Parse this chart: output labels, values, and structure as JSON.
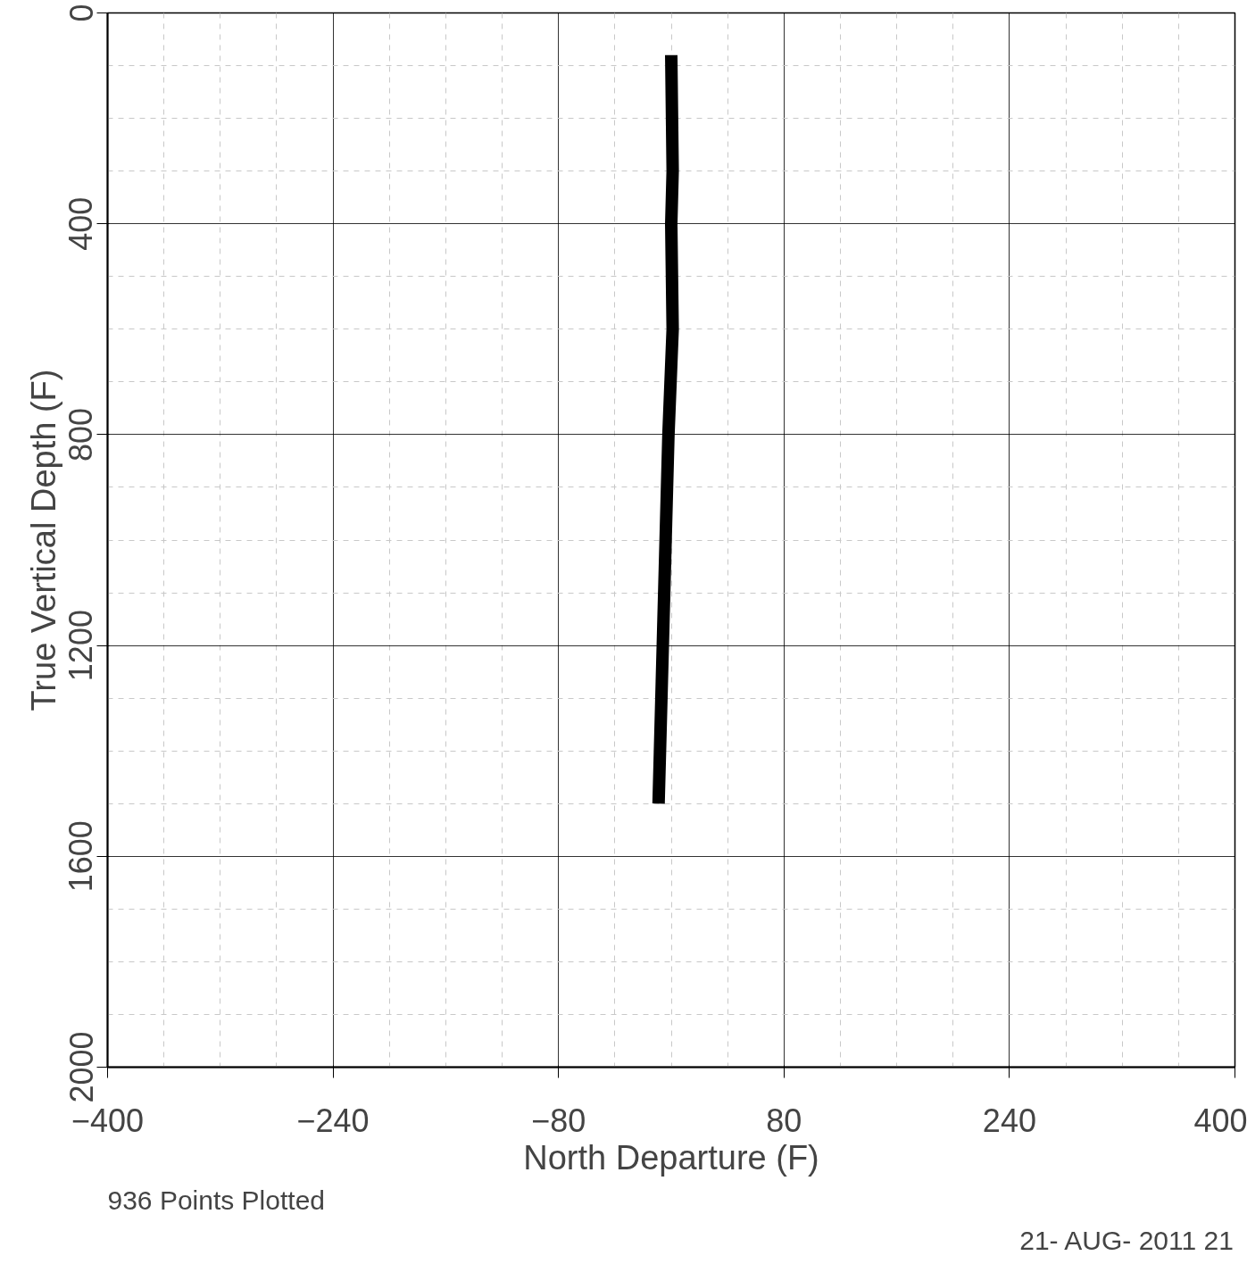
{
  "chart_data": {
    "type": "line",
    "xlabel": "North Departure (F)",
    "ylabel": "True Vertical Depth (F)",
    "x": [
      0,
      1,
      0,
      1,
      -2,
      -4,
      -6,
      -8,
      -9
    ],
    "series": [
      {
        "color": "#000000",
        "values": [
          80,
          300,
          400,
          600,
          800,
          1000,
          1200,
          1400,
          1500
        ]
      }
    ],
    "xlim": [
      -400,
      400
    ],
    "xticks": [
      -400,
      -240,
      -80,
      80,
      240,
      400
    ],
    "ylim": [
      2000,
      0
    ],
    "yticks": [
      0,
      400,
      800,
      1200,
      1600,
      2000
    ],
    "grid": true,
    "annotations": [
      "936 Points Plotted",
      "21- AUG- 2011 21"
    ]
  }
}
